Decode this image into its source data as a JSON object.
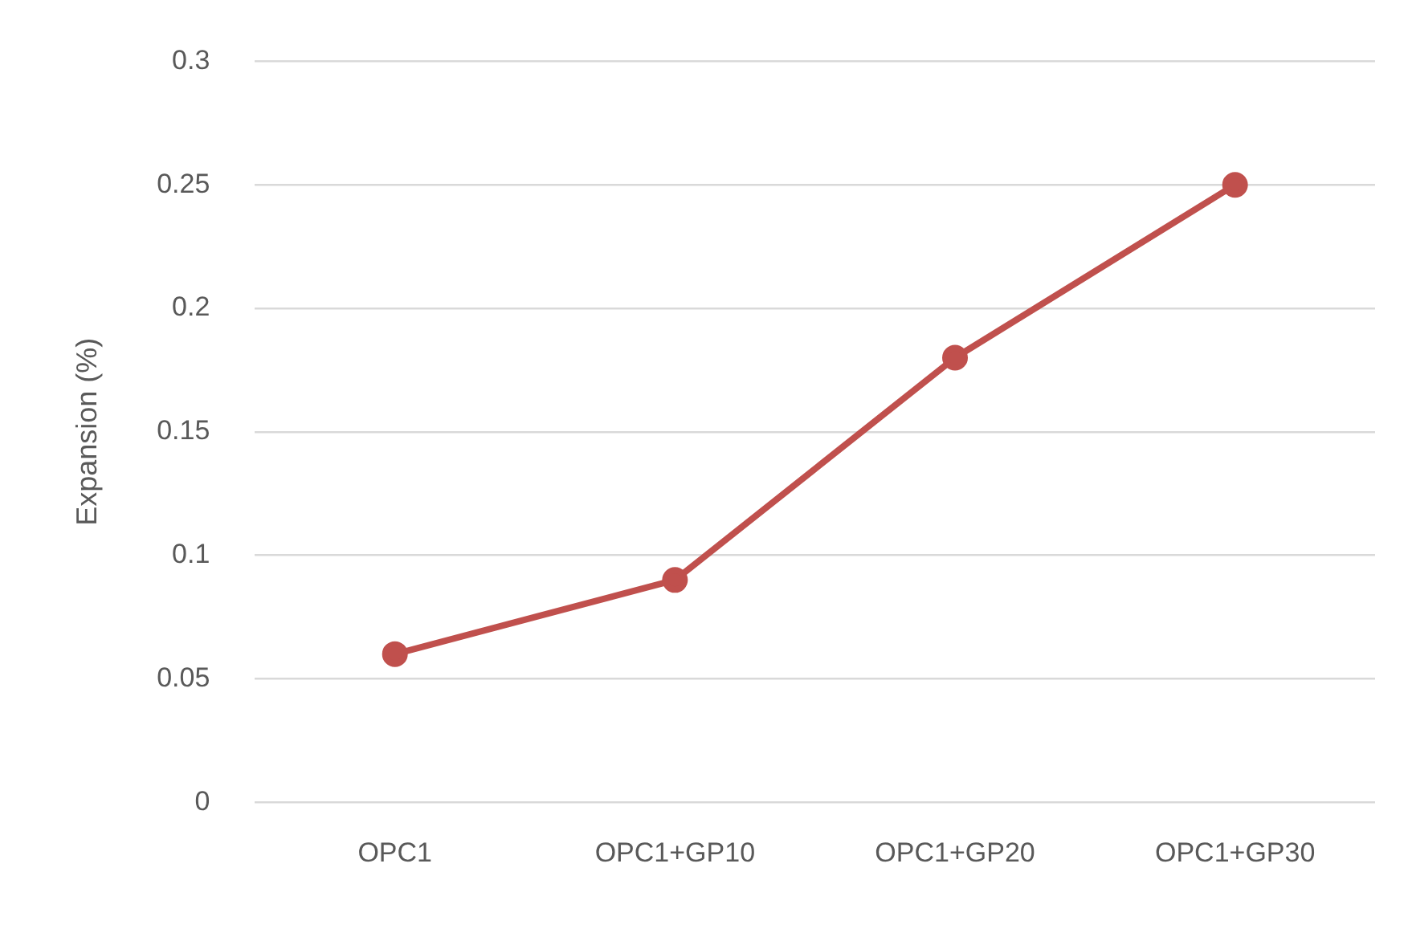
{
  "chart_data": {
    "type": "line",
    "ylabel": "Expansion (%)",
    "categories": [
      "OPC1",
      "OPC1+GP10",
      "OPC1+GP20",
      "OPC1+GP30"
    ],
    "series": [
      {
        "color": "#c0504d",
        "values": [
          0.06,
          0.09,
          0.18,
          0.25
        ]
      }
    ],
    "ylim": [
      0,
      0.3
    ],
    "yticks": [
      0,
      0.05,
      0.1,
      0.15,
      0.2,
      0.25,
      0.3
    ],
    "grid": "y",
    "marker": "circle",
    "line_style": "solid",
    "legend": false
  }
}
